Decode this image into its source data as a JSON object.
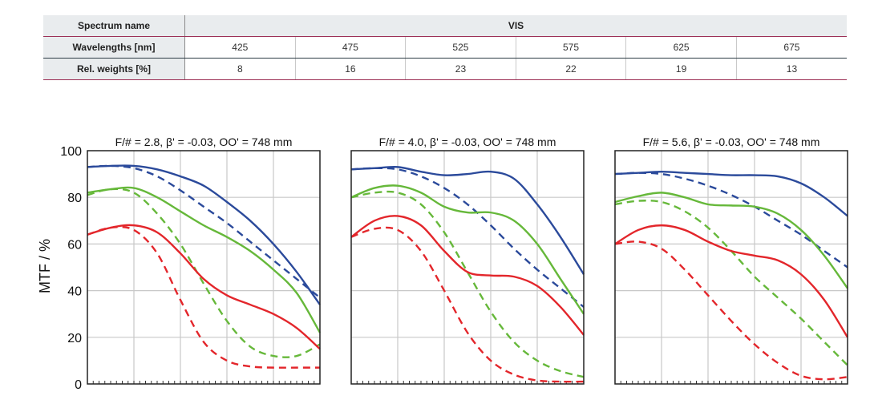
{
  "table": {
    "header_label": "Spectrum name",
    "spectrum_name": "VIS",
    "wavelengths_label": "Wavelengths [nm]",
    "weights_label": "Rel. weights [%]",
    "wavelengths": [
      "425",
      "475",
      "525",
      "575",
      "625",
      "675"
    ],
    "weights": [
      "8",
      "16",
      "23",
      "22",
      "19",
      "13"
    ]
  },
  "colors": {
    "blue": "#2b4a9b",
    "green": "#66b83a",
    "red": "#e3262b",
    "grid": "#c8c8c8"
  },
  "chart_data": [
    {
      "type": "line",
      "title": "F/# = 2.8, β' = -0.03, OO' = 748 mm",
      "ylabel": "MTF / %",
      "ylim": [
        0,
        100
      ],
      "yticks": [
        0,
        20,
        40,
        60,
        80,
        100
      ],
      "xlim": [
        0,
        1
      ],
      "grid": true,
      "series": [
        {
          "color": "blue",
          "style": "solid",
          "x": [
            0,
            0.1,
            0.2,
            0.3,
            0.4,
            0.5,
            0.6,
            0.7,
            0.8,
            0.9,
            1.0
          ],
          "y": [
            93,
            93.5,
            93.5,
            92,
            89,
            85,
            78,
            70,
            60,
            48,
            34
          ]
        },
        {
          "color": "blue",
          "style": "dashed",
          "x": [
            0,
            0.1,
            0.2,
            0.3,
            0.4,
            0.5,
            0.6,
            0.7,
            0.8,
            0.9,
            1.0
          ],
          "y": [
            93,
            93.5,
            92.5,
            89,
            83,
            76,
            69,
            61,
            53,
            45,
            37
          ]
        },
        {
          "color": "green",
          "style": "solid",
          "x": [
            0,
            0.1,
            0.2,
            0.3,
            0.4,
            0.5,
            0.6,
            0.7,
            0.8,
            0.9,
            1.0
          ],
          "y": [
            82,
            83.5,
            84,
            80,
            74,
            68,
            63,
            57,
            49,
            39,
            22
          ]
        },
        {
          "color": "green",
          "style": "dashed",
          "x": [
            0,
            0.1,
            0.2,
            0.3,
            0.4,
            0.5,
            0.6,
            0.7,
            0.8,
            0.9,
            1.0
          ],
          "y": [
            81,
            83.5,
            82,
            73,
            60,
            43,
            27,
            16,
            12,
            12,
            17
          ]
        },
        {
          "color": "red",
          "style": "solid",
          "x": [
            0,
            0.1,
            0.2,
            0.3,
            0.4,
            0.5,
            0.6,
            0.7,
            0.8,
            0.9,
            1.0
          ],
          "y": [
            64,
            67,
            68,
            65,
            56,
            45,
            38,
            34,
            30,
            24,
            15
          ]
        },
        {
          "color": "red",
          "style": "dashed",
          "x": [
            0,
            0.1,
            0.2,
            0.3,
            0.4,
            0.5,
            0.6,
            0.7,
            0.8,
            0.9,
            1.0
          ],
          "y": [
            64,
            67,
            66,
            56,
            36,
            18,
            10,
            7.5,
            7,
            7,
            7
          ]
        }
      ]
    },
    {
      "type": "line",
      "title": "F/# = 4.0, β' = -0.03, OO' = 748 mm",
      "ylim": [
        0,
        100
      ],
      "xlim": [
        0,
        1
      ],
      "grid": true,
      "series": [
        {
          "color": "blue",
          "style": "solid",
          "x": [
            0,
            0.1,
            0.2,
            0.3,
            0.4,
            0.5,
            0.6,
            0.7,
            0.8,
            0.9,
            1.0
          ],
          "y": [
            92,
            92.5,
            93,
            91,
            89.5,
            90,
            91,
            88,
            77,
            63,
            47
          ]
        },
        {
          "color": "blue",
          "style": "dashed",
          "x": [
            0,
            0.1,
            0.2,
            0.3,
            0.4,
            0.5,
            0.6,
            0.7,
            0.8,
            0.9,
            1.0
          ],
          "y": [
            92,
            92.5,
            92,
            89,
            84,
            77,
            68,
            58,
            49,
            41,
            33
          ]
        },
        {
          "color": "green",
          "style": "solid",
          "x": [
            0,
            0.1,
            0.2,
            0.3,
            0.4,
            0.5,
            0.6,
            0.7,
            0.8,
            0.9,
            1.0
          ],
          "y": [
            80,
            84,
            85,
            82,
            76,
            73.5,
            73.5,
            70,
            60,
            45,
            30
          ]
        },
        {
          "color": "green",
          "style": "dashed",
          "x": [
            0,
            0.1,
            0.2,
            0.3,
            0.4,
            0.5,
            0.6,
            0.7,
            0.8,
            0.9,
            1.0
          ],
          "y": [
            80,
            82,
            82,
            77,
            65,
            48,
            31,
            18,
            10,
            5.5,
            3
          ]
        },
        {
          "color": "red",
          "style": "solid",
          "x": [
            0,
            0.1,
            0.2,
            0.3,
            0.4,
            0.5,
            0.6,
            0.7,
            0.8,
            0.9,
            1.0
          ],
          "y": [
            63,
            70,
            72,
            68,
            57,
            48,
            46.5,
            46,
            42,
            33,
            21
          ]
        },
        {
          "color": "red",
          "style": "dashed",
          "x": [
            0,
            0.1,
            0.2,
            0.3,
            0.4,
            0.5,
            0.6,
            0.7,
            0.8,
            0.9,
            1.0
          ],
          "y": [
            63,
            66.5,
            66,
            57,
            40,
            22,
            10,
            4,
            1.5,
            1,
            1
          ]
        }
      ]
    },
    {
      "type": "line",
      "title": "F/# = 5.6, β' = -0.03, OO' = 748 mm",
      "ylim": [
        0,
        100
      ],
      "xlim": [
        0,
        1
      ],
      "grid": true,
      "series": [
        {
          "color": "blue",
          "style": "solid",
          "x": [
            0,
            0.1,
            0.2,
            0.3,
            0.4,
            0.5,
            0.6,
            0.7,
            0.8,
            0.9,
            1.0
          ],
          "y": [
            90,
            90.5,
            91,
            90.5,
            90,
            89.5,
            89.5,
            89,
            86,
            80,
            72
          ]
        },
        {
          "color": "blue",
          "style": "dashed",
          "x": [
            0,
            0.1,
            0.2,
            0.3,
            0.4,
            0.5,
            0.6,
            0.7,
            0.8,
            0.9,
            1.0
          ],
          "y": [
            90,
            90.5,
            90,
            88,
            85,
            81,
            76,
            70,
            64,
            57,
            50
          ]
        },
        {
          "color": "green",
          "style": "solid",
          "x": [
            0,
            0.1,
            0.2,
            0.3,
            0.4,
            0.5,
            0.6,
            0.7,
            0.8,
            0.9,
            1.0
          ],
          "y": [
            78,
            80.5,
            82,
            80,
            77,
            76.5,
            76,
            73,
            66,
            55,
            41
          ]
        },
        {
          "color": "green",
          "style": "dashed",
          "x": [
            0,
            0.1,
            0.2,
            0.3,
            0.4,
            0.5,
            0.6,
            0.7,
            0.8,
            0.9,
            1.0
          ],
          "y": [
            77,
            78.5,
            78,
            74,
            67,
            57,
            46,
            37,
            28,
            18,
            8
          ]
        },
        {
          "color": "red",
          "style": "solid",
          "x": [
            0,
            0.1,
            0.2,
            0.3,
            0.4,
            0.5,
            0.6,
            0.7,
            0.8,
            0.9,
            1.0
          ],
          "y": [
            60,
            66,
            68,
            66,
            61,
            57,
            55,
            53,
            47,
            36,
            20
          ]
        },
        {
          "color": "red",
          "style": "dashed",
          "x": [
            0,
            0.1,
            0.2,
            0.3,
            0.4,
            0.5,
            0.6,
            0.7,
            0.8,
            0.9,
            1.0
          ],
          "y": [
            60,
            61,
            58,
            49,
            38,
            27,
            17,
            9,
            3.5,
            2,
            3
          ]
        }
      ]
    }
  ]
}
